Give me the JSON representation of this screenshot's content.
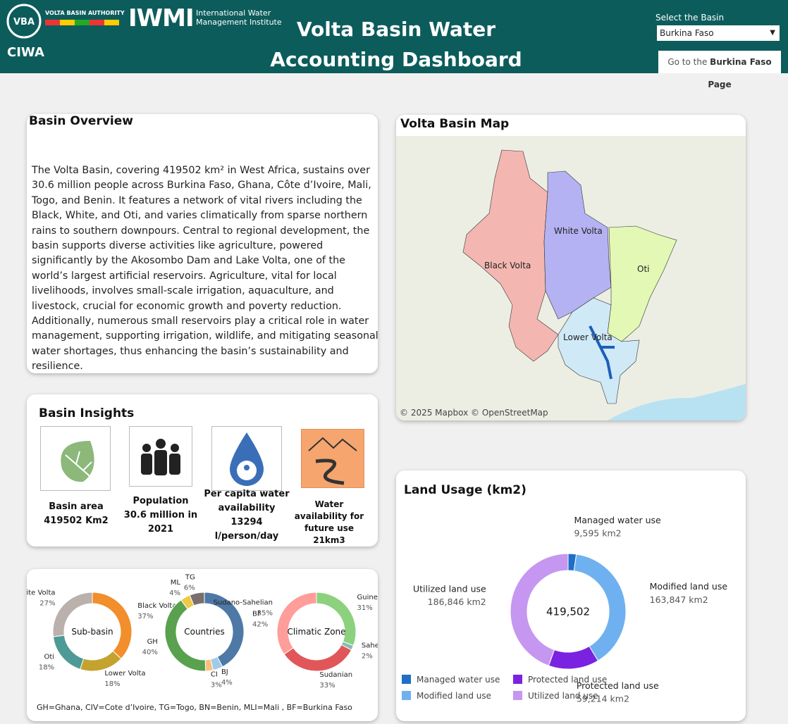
{
  "header": {
    "vba": "VOLTA BASIN AUTHORITY",
    "iwmi": "IWMI",
    "iwmi_name": "International Water Management Institute",
    "ciwa": "CIWA",
    "title": "Volta Basin Water Accounting Dashboard",
    "select_label": "Select the Basin",
    "selected": "Burkina Faso",
    "button": {
      "prefix": "Go to the",
      "bold": "Burkina Faso Page"
    }
  },
  "overview": {
    "title": "Basin Overview",
    "text": "The Volta Basin, covering 419502 km² in West Africa, sustains over 30.6 million people across Burkina Faso, Ghana, Côte d’Ivoire, Mali, Togo, and Benin. It features a network of vital rivers including the Black, White, and Oti, and varies climatically from sparse northern rains to southern downpours. Central to regional development, the basin supports diverse activities like agriculture, powered significantly by the Akosombo Dam and Lake Volta, one of the world’s largest artificial reservoirs. Agriculture, vital for local livelihoods, involves small-scale irrigation, aquaculture, and livestock, crucial for economic growth and poverty reduction. Additionally, numerous small reservoirs play a critical role in water management, supporting irrigation, wildlife, and mitigating seasonal water shortages, thus enhancing the basin’s sustainability and resilience."
  },
  "map": {
    "title": "Volta Basin Map",
    "labels": [
      "White Volta",
      "Oti",
      "Black Volta",
      "Lower Volta"
    ],
    "attribution": "© 2025 Mapbox  © OpenStreetMap"
  },
  "insights": {
    "title": "Basin Insights",
    "items": [
      "Basin area 419502 Km2",
      "Population 30.6 million in 2021",
      "Per capita water availability 13294 l/person/day",
      "Water availability for future use 21km3"
    ]
  },
  "footnote": "GH=Ghana, CIV=Cote d’Ivoire, TG=Togo, BN=Benin, MLI=Mali , BF=Burkina Faso",
  "chart_data": [
    {
      "type": "donut",
      "center_label": "Sub-basin",
      "categories": [
        "Black Volta",
        "Lower Volta",
        "Oti",
        "White Volta"
      ],
      "values": [
        37,
        18,
        18,
        27
      ],
      "value_labels": [
        "37%",
        "18%",
        "18%",
        "27%"
      ],
      "colors": [
        "#f28e2b",
        "#c4a22e",
        "#4e9a96",
        "#bab0ac"
      ]
    },
    {
      "type": "donut",
      "center_label": "Countries",
      "categories": [
        "BF",
        "BJ",
        "CI",
        "GH",
        "ML",
        "TG"
      ],
      "values": [
        42,
        4,
        3,
        40,
        4,
        6
      ],
      "value_labels": [
        "42%",
        "4%",
        "3%",
        "40%",
        "4%",
        "6%"
      ],
      "colors": [
        "#4e79a7",
        "#a0cbe8",
        "#ffbe7d",
        "#59a14f",
        "#edc948",
        "#79706e"
      ]
    },
    {
      "type": "donut",
      "center_label": "Climatic Zone",
      "categories": [
        "Guinean",
        "Sahelian",
        "Sudanian",
        "Sudano-Sahelian"
      ],
      "values": [
        31,
        2,
        33,
        35
      ],
      "value_labels": [
        "31%",
        "2%",
        "33%",
        "35%"
      ],
      "colors": [
        "#8cd17d",
        "#86bcb6",
        "#e15759",
        "#ff9d9a"
      ]
    },
    {
      "type": "donut",
      "title": "Land Usage (km2)",
      "center_label": "419,502",
      "categories": [
        "Managed water use",
        "Modified land use",
        "Protected land use",
        "Utilized land use"
      ],
      "values": [
        9595,
        163847,
        59214,
        186846
      ],
      "value_labels": [
        "9,595 km2",
        "163,847 km2",
        "59,214 km2",
        "186,846 km2"
      ],
      "colors": [
        "#1f6fc5",
        "#6fb1f0",
        "#7b22e0",
        "#c597f0"
      ],
      "legend": true
    }
  ]
}
